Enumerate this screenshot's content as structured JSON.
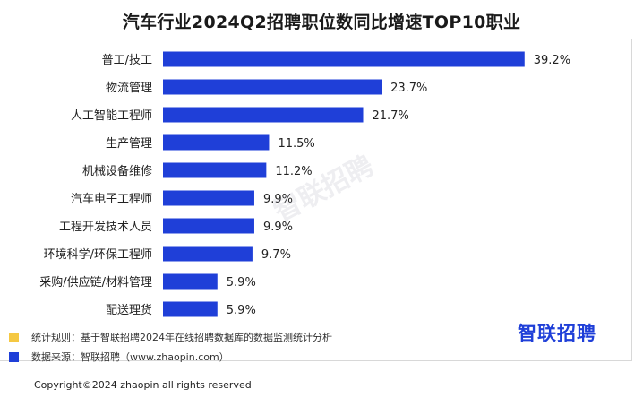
{
  "title": "汽车行业2024Q2招聘职位数同比增速TOP10职业",
  "chart_data": {
    "type": "bar",
    "orientation": "horizontal",
    "categories": [
      "普工/技工",
      "物流管理",
      "人工智能工程师",
      "生产管理",
      "机械设备维修",
      "汽车电子工程师",
      "工程开发技术人员",
      "环境科学/环保工程师",
      "采购/供应链/材料管理",
      "配送理货"
    ],
    "values": [
      39.2,
      23.7,
      21.7,
      11.5,
      11.2,
      9.9,
      9.9,
      9.7,
      5.9,
      5.9
    ],
    "value_labels": [
      "39.2%",
      "23.7%",
      "21.7%",
      "11.5%",
      "11.2%",
      "9.9%",
      "9.9%",
      "9.7%",
      "5.9%",
      "5.9%"
    ],
    "value_unit": "%",
    "xlim": [
      0,
      40
    ],
    "bar_color": "#1f3fd8",
    "grid": false
  },
  "watermark": "智联招聘",
  "footnotes": [
    {
      "text": "统计规则：基于智联招聘2024年在线招聘数据库的数据监测统计分析",
      "color": "#f5c842"
    },
    {
      "text": "数据来源：智联招聘（www.zhaopin.com）",
      "color": "#1f3fd8"
    }
  ],
  "logo": "智联招聘",
  "copyright": "Copyright©2024 zhaopin all rights reserved"
}
